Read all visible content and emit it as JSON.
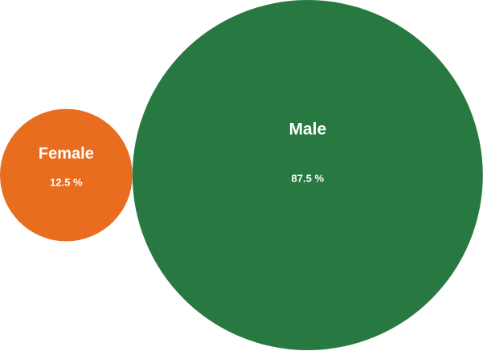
{
  "chart_data": {
    "type": "bubble",
    "bubbles": [
      {
        "name": "Female",
        "value": 12.5,
        "label": "12.5 %",
        "color": "#e96d1f"
      },
      {
        "name": "Male",
        "value": 87.5,
        "label": "87.5 %",
        "color": "#277841"
      }
    ],
    "unit": "%",
    "legend": "none",
    "grid": false
  }
}
